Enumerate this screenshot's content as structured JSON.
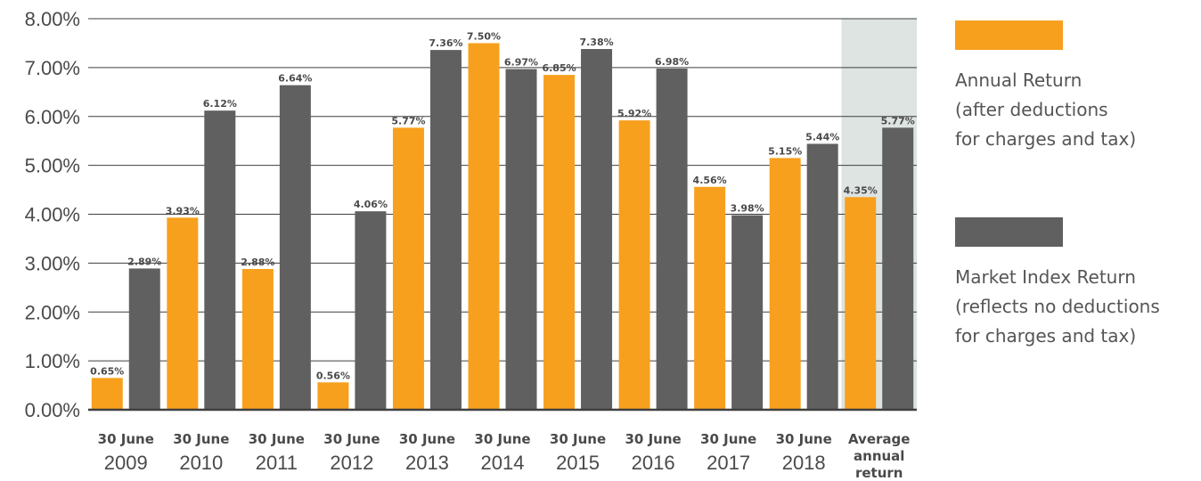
{
  "chart_data": {
    "type": "bar",
    "categories": [
      {
        "line1": "30 June",
        "line2": "2009"
      },
      {
        "line1": "30 June",
        "line2": "2010"
      },
      {
        "line1": "30 June",
        "line2": "2011"
      },
      {
        "line1": "30 June",
        "line2": "2012"
      },
      {
        "line1": "30 June",
        "line2": "2013"
      },
      {
        "line1": "30 June",
        "line2": "2014"
      },
      {
        "line1": "30 June",
        "line2": "2015"
      },
      {
        "line1": "30 June",
        "line2": "2016"
      },
      {
        "line1": "30 June",
        "line2": "2017"
      },
      {
        "line1": "30 June",
        "line2": "2018"
      },
      {
        "line1": "Average",
        "line2": "annual",
        "line3": "return"
      }
    ],
    "series": [
      {
        "name": "Annual Return (after deductions for charges and tax)",
        "color": "#f7a01e",
        "values": [
          0.65,
          3.93,
          2.88,
          0.56,
          5.77,
          7.5,
          6.85,
          5.92,
          4.56,
          5.15,
          4.35
        ],
        "labels": [
          "0.65%",
          "3.93%",
          "2.88%",
          "0.56%",
          "5.77%",
          "7.50%",
          "6.85%",
          "5.92%",
          "4.56%",
          "5.15%",
          "4.35%"
        ]
      },
      {
        "name": "Market Index Return (reflects no deductions for charges and tax)",
        "color": "#606061",
        "values": [
          2.89,
          6.12,
          6.64,
          4.06,
          7.36,
          6.97,
          7.38,
          6.98,
          3.98,
          5.44,
          5.77
        ],
        "labels": [
          "2.89%",
          "6.12%",
          "6.64%",
          "4.06%",
          "7.36%",
          "6.97%",
          "7.38%",
          "6.98%",
          "3.98%",
          "5.44%",
          "5.77%"
        ]
      }
    ],
    "yticks": [
      "0.00%",
      "1.00%",
      "2.00%",
      "3.00%",
      "4.00%",
      "5.00%",
      "6.00%",
      "7.00%",
      "8.00%"
    ],
    "ylim": [
      0,
      8
    ],
    "grid": true,
    "highlight_category_index": 10,
    "highlight_color": "#dde4e2",
    "legend_position": "right"
  },
  "legend": {
    "annual": "Annual Return\n(after deductions\nfor charges and tax)",
    "market": "Market Index Return\n(reflects no deductions\nfor charges and tax)"
  }
}
